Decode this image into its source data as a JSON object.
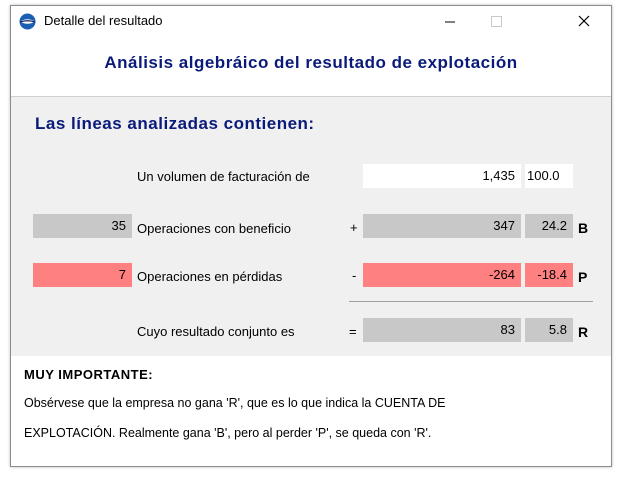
{
  "window": {
    "title": "Detalle del resultado",
    "app_icon": "app-icon",
    "controls": {
      "minimize": "minimize-icon",
      "maximize": "maximize-icon",
      "close": "close-icon"
    }
  },
  "header": {
    "title": "Análisis algebráico del resultado de explotación"
  },
  "panel": {
    "heading": "Las líneas analizadas contienen:",
    "rows": {
      "volume": {
        "label": "Un volumen de facturación de",
        "value": "1,435",
        "pct": "100.0"
      },
      "profit": {
        "count": "35",
        "label": "Operaciones con beneficio",
        "sign": "+",
        "value": "347",
        "pct": "24.2",
        "letter": "B"
      },
      "loss": {
        "count": "7",
        "label": "Operaciones en pérdidas",
        "sign": "-",
        "value": "-264",
        "pct": "-18.4",
        "letter": "P"
      },
      "result": {
        "label": "Cuyo resultado conjunto es",
        "sign": "=",
        "value": "83",
        "pct": "5.8",
        "letter": "R"
      }
    }
  },
  "note": {
    "title": "MUY IMPORTANTE:",
    "line1": "Obsérvese que la empresa no gana 'R', que es lo que indica la CUENTA DE",
    "line2": "EXPLOTACIÓN. Realmente gana 'B', pero al perder 'P', se queda con 'R'."
  },
  "colors": {
    "title_blue": "#0a1a7a",
    "gray_box": "#c8c8c8",
    "loss_red": "#ff8080",
    "panel_bg": "#f0f0f0"
  }
}
